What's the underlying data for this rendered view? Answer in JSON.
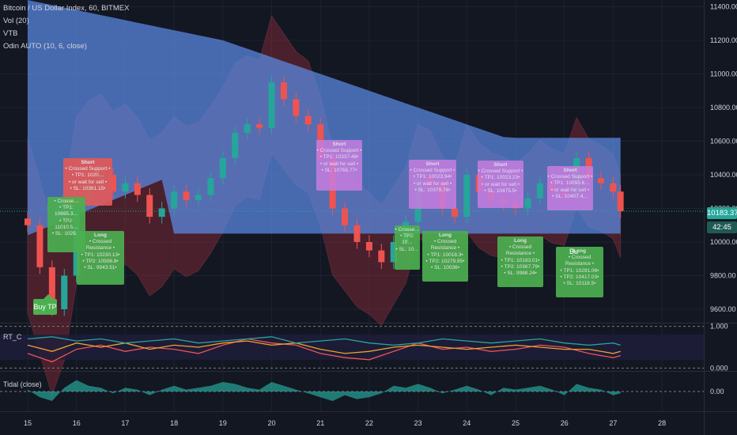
{
  "legend": {
    "title": "Bitcoin / US Dollar Index, 60, BITMEX",
    "vol": "Vol (20)",
    "vtb": "VTB",
    "odin": "Odin AUTO (10, 6, close)"
  },
  "current_price": "10183.37",
  "countdown": "42:45",
  "buy_tp": "Buy TP",
  "colors": {
    "background": "#131722",
    "band_blue": "#5b8ae6",
    "band_red": "#8b2c3a",
    "candle_up": "#26a69a",
    "candle_down": "#ef5350",
    "long_box": "#4caf50",
    "short_box": "#c77de0",
    "red_box": "#e05a5a",
    "price_tag": "#26a69a",
    "countdown_tag": "#1f5a55"
  },
  "chart_data": [
    {
      "type": "candlestick",
      "title": "Bitcoin / US Dollar Index, 60, BITMEX",
      "x_ticks": [
        "15",
        "16",
        "17",
        "18",
        "19",
        "20",
        "21",
        "22",
        "23",
        "24",
        "25",
        "26",
        "27",
        "28"
      ],
      "y_ticks": [
        "11400.00",
        "11200.00",
        "11000.00",
        "10800.00",
        "10600.00",
        "10400.00",
        "10200.00",
        "10000.00",
        "9800.00",
        "9600.00"
      ],
      "ylim": [
        9520,
        11440
      ],
      "x": [
        15,
        15.25,
        15.5,
        15.75,
        16,
        16.25,
        16.5,
        16.75,
        17,
        17.25,
        17.5,
        17.75,
        18,
        18.25,
        18.5,
        18.75,
        19,
        19.25,
        19.5,
        19.75,
        20,
        20.25,
        20.5,
        20.75,
        21,
        21.25,
        21.5,
        21.75,
        22,
        22.25,
        22.5,
        22.75,
        23,
        23.25,
        23.5,
        23.75,
        24,
        24.25,
        24.5,
        24.75,
        25,
        25.25,
        25.5,
        25.75,
        26,
        26.25,
        26.5,
        26.75,
        27,
        27.15
      ],
      "close": [
        10100,
        9850,
        9600,
        9800,
        10250,
        10350,
        10400,
        10300,
        10350,
        10280,
        10150,
        10200,
        10300,
        10250,
        10280,
        10380,
        10500,
        10650,
        10700,
        10680,
        10950,
        10850,
        10750,
        10700,
        10500,
        10200,
        10100,
        10000,
        9950,
        9880,
        10000,
        10120,
        10380,
        10350,
        10200,
        10150,
        10400,
        10300,
        10250,
        10230,
        10200,
        10260,
        10350,
        10300,
        10280,
        10500,
        10380,
        10350,
        10300,
        10183.37
      ]
    },
    {
      "type": "line",
      "title": "RT_C",
      "y_ticks": [
        "1.000",
        "0.000"
      ],
      "ylim": [
        -0.05,
        1.05
      ],
      "x": [
        15,
        15.5,
        16,
        16.5,
        17,
        17.5,
        18,
        18.5,
        19,
        19.5,
        20,
        20.5,
        21,
        21.5,
        22,
        22.5,
        23,
        23.5,
        24,
        24.5,
        25,
        25.5,
        26,
        26.5,
        27,
        27.15
      ],
      "series": [
        {
          "values": [
            0.35,
            0.15,
            0.45,
            0.55,
            0.4,
            0.5,
            0.45,
            0.35,
            0.55,
            0.7,
            0.6,
            0.55,
            0.35,
            0.25,
            0.2,
            0.4,
            0.6,
            0.45,
            0.5,
            0.4,
            0.45,
            0.55,
            0.5,
            0.35,
            0.25,
            0.3
          ]
        },
        {
          "values": [
            0.55,
            0.4,
            0.6,
            0.5,
            0.6,
            0.45,
            0.55,
            0.5,
            0.6,
            0.65,
            0.55,
            0.6,
            0.45,
            0.35,
            0.4,
            0.5,
            0.55,
            0.5,
            0.45,
            0.5,
            0.55,
            0.5,
            0.45,
            0.45,
            0.35,
            0.4
          ]
        },
        {
          "values": [
            0.7,
            0.75,
            0.65,
            0.7,
            0.6,
            0.65,
            0.7,
            0.6,
            0.65,
            0.7,
            0.75,
            0.6,
            0.65,
            0.7,
            0.6,
            0.55,
            0.6,
            0.7,
            0.65,
            0.6,
            0.65,
            0.7,
            0.6,
            0.55,
            0.6,
            0.55
          ]
        }
      ]
    },
    {
      "type": "area",
      "title": "Tidal (close)",
      "y_ticks": [
        "0.00"
      ],
      "ylim": [
        -1,
        1
      ],
      "x": [
        15,
        15.25,
        15.5,
        15.75,
        16,
        16.25,
        16.5,
        16.75,
        17,
        17.25,
        17.5,
        17.75,
        18,
        18.25,
        18.5,
        18.75,
        19,
        19.25,
        19.5,
        19.75,
        20,
        20.25,
        20.5,
        20.75,
        21,
        21.25,
        21.5,
        21.75,
        22,
        22.25,
        22.5,
        22.75,
        23,
        23.25,
        23.5,
        23.75,
        24,
        24.25,
        24.5,
        24.75,
        25,
        25.25,
        25.5,
        25.75,
        26,
        26.25,
        26.5,
        26.75,
        27,
        27.15
      ],
      "values": [
        0.1,
        -0.3,
        -0.5,
        0.2,
        0.6,
        0.3,
        0.2,
        -0.1,
        0.2,
        0.1,
        -0.2,
        0.1,
        0.3,
        0.1,
        0.2,
        0.3,
        0.5,
        0.4,
        0.2,
        0.1,
        0.5,
        0.3,
        0.1,
        -0.1,
        -0.3,
        -0.5,
        -0.2,
        -0.4,
        -0.3,
        -0.1,
        0.3,
        0.2,
        0.4,
        0.2,
        -0.1,
        0.1,
        0.3,
        0.1,
        -0.2,
        0.2,
        0.1,
        0.2,
        0.3,
        0.1,
        -0.2,
        0.4,
        0.2,
        0.1,
        -0.2,
        -0.1
      ]
    }
  ],
  "signals": [
    {
      "color": "red",
      "lines": [
        "Short",
        "• Crossed Support •",
        "• TP1: 1020…",
        "• or wait for sell •",
        "• SL: 10361.15•"
      ]
    },
    {
      "color": "green",
      "lines": [
        "• Crosse…",
        "• TP1: 10695.3…",
        "• TP2: 11010.5…",
        "• SL: 1029…"
      ]
    },
    {
      "color": "green",
      "lines": [
        "Long",
        "• Crossed Resistance •",
        "• TP1: 10230.13•",
        "• TP2: 10506.8•",
        "• SL: 9943.51•"
      ]
    },
    {
      "color": "purple",
      "lines": [
        "Short",
        "• Crossed Support •",
        "• TP1: 10337.48•",
        "• or wait for sell •",
        "• SL: 10765.77•"
      ]
    },
    {
      "color": "purple",
      "lines": [
        "Short",
        "• Crossed Support •",
        "• TP1: 10023.94•",
        "• or wait for sell •",
        "• SL: 10379.76•"
      ]
    },
    {
      "color": "green",
      "lines": [
        "• Crosse…",
        "• TP2: 10…",
        "• SL: 10…"
      ]
    },
    {
      "color": "green",
      "lines": [
        "Long",
        "• Crossed Resistance •",
        "• TP1: 10018.3•",
        "• TP2: 10279.95•",
        "• SL: 10036•"
      ]
    },
    {
      "color": "purple",
      "lines": [
        "Short",
        "• Crossed Support •",
        "• TP1: 10023.23•",
        "• or wait for sell •",
        "• SL: 10475.5•"
      ]
    },
    {
      "color": "green",
      "lines": [
        "Long",
        "• Crossed Resistance •",
        "• TP1: 10183.01•",
        "• TP2: 10367.79•",
        "• SL: 9988.24•"
      ]
    },
    {
      "color": "purple",
      "lines": [
        "Short",
        "• Crossed Support •",
        "• TP1: 10093.6…",
        "• or wait for sell •",
        "• SL: 10407.4…"
      ]
    },
    {
      "color": "green",
      "lines": [
        "Long",
        "• Crossed Resistance •",
        "• TP1: 10291.06•",
        "• TP2: 10417.03•",
        "• SL: 10118.5•"
      ]
    }
  ],
  "small_labels": [
    "Bu"
  ],
  "rt_label": "RT_C",
  "tidal_label": "Tidal (close)"
}
